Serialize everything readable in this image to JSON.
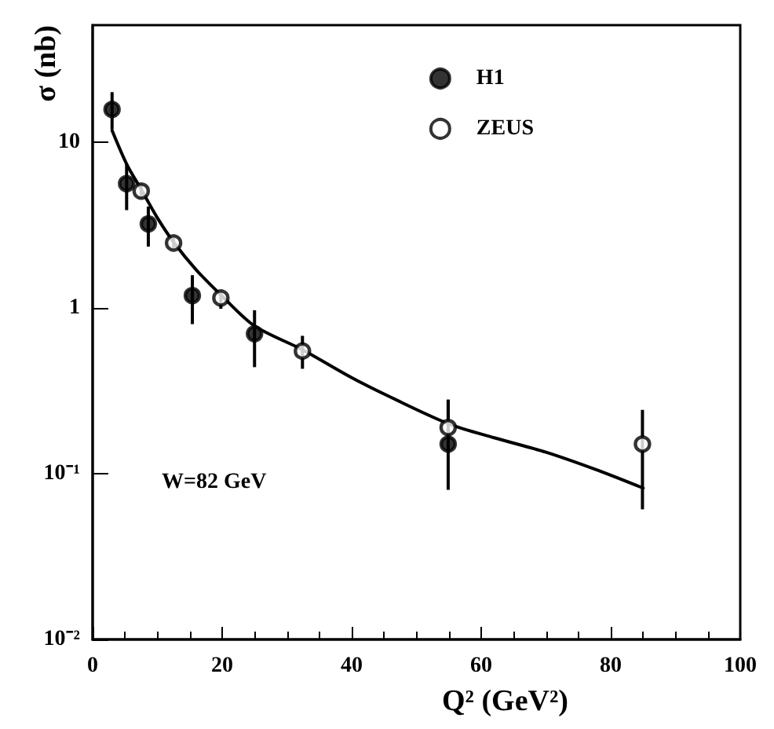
{
  "chart_data": {
    "type": "scatter",
    "xlabel": "Q² (GeV²)",
    "ylabel": "σ (nb)",
    "log": "y",
    "xlim": [
      0,
      100
    ],
    "xticks": [
      0,
      20,
      40,
      60,
      80,
      100
    ],
    "ylim": [
      0.01,
      51
    ],
    "yticks": [
      {
        "value": 0.01,
        "label": "10⁻²"
      },
      {
        "value": 0.1,
        "label": "10⁻¹"
      },
      1,
      10
    ],
    "legend": "top right",
    "marker": "circle",
    "grid": false,
    "annotations": [
      "W=82 GeV"
    ],
    "series": [
      {
        "name": "H1",
        "color": "#000000",
        "x": [
          3.0,
          5.25,
          8.6,
          15.4,
          25,
          54.9
        ],
        "values": [
          15.8,
          5.64,
          3.22,
          1.19,
          0.7,
          0.151
        ],
        "errors": [
          [
            12,
            20.1
          ],
          [
            3.9,
            7.4
          ],
          [
            2.35,
            4.1
          ],
          [
            0.8,
            1.58
          ],
          [
            0.44,
            0.97
          ],
          [
            0.08,
            0.28
          ]
        ]
      },
      {
        "name": "ZEUS",
        "color": "#ffffff",
        "x": [
          7.5,
          12.5,
          19.8,
          32.4,
          54.9,
          84.9
        ],
        "values": [
          5.08,
          2.47,
          1.15,
          0.55,
          0.19,
          0.151
        ],
        "errors": [
          [
            4.6,
            5.6
          ],
          [
            2.3,
            2.65
          ],
          [
            0.99,
            1.25
          ],
          [
            0.43,
            0.68
          ],
          [
            0.16,
            0.28
          ],
          [
            0.061,
            0.243
          ]
        ]
      },
      {
        "type": "line",
        "color": "#000000",
        "marker": "none",
        "x": [
          3,
          5.25,
          7.5,
          10,
          12.5,
          16,
          20,
          25,
          32.4,
          40,
          46,
          55,
          62,
          70,
          78,
          85
        ],
        "values": [
          11.8,
          7.4,
          5.2,
          3.5,
          2.5,
          1.7,
          1.18,
          0.78,
          0.56,
          0.38,
          0.29,
          0.2,
          0.165,
          0.135,
          0.105,
          0.082
        ]
      }
    ]
  }
}
